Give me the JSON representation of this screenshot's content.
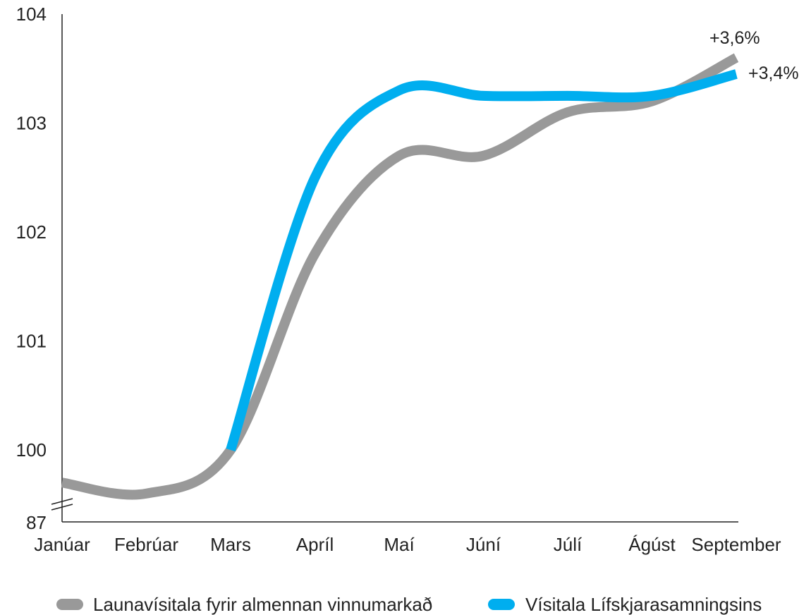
{
  "chart_data": {
    "type": "line",
    "categories": [
      "Janúar",
      "Febrúar",
      "Mars",
      "Apríl",
      "Maí",
      "Júní",
      "Júlí",
      "Ágúst",
      "September"
    ],
    "y_ticks": [
      "100",
      "101",
      "102",
      "103",
      "104"
    ],
    "y_break_label": "87",
    "ylim": [
      99.35,
      104
    ],
    "axis_break": true,
    "grid": false,
    "legend_position": "bottom",
    "series": [
      {
        "name": "Launavísitala fyrir almennan vinnumarkað",
        "color": "#999999",
        "values": [
          99.7,
          99.6,
          100.0,
          101.8,
          102.7,
          102.7,
          103.1,
          103.2,
          103.6
        ],
        "end_label": "+3,6%"
      },
      {
        "name": "Vísitala Lífskjarasamningsins",
        "color": "#00aeef",
        "values": [
          null,
          null,
          100.0,
          102.5,
          103.3,
          103.25,
          103.25,
          103.25,
          103.45
        ],
        "end_label": "+3,4%"
      }
    ]
  }
}
